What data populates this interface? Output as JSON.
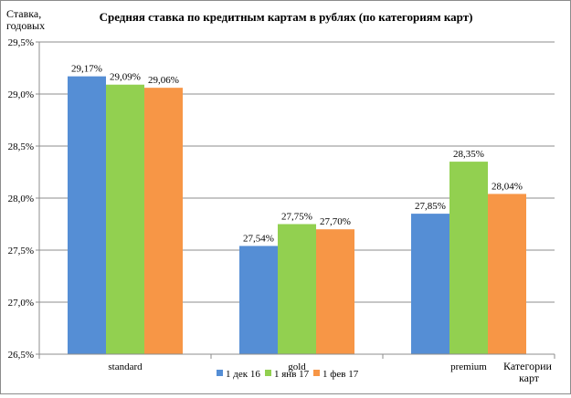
{
  "chart_data": {
    "type": "bar",
    "title": "Средняя ставка по кредитным картам в рублях  (по категориям  карт)",
    "ylabel": [
      "Ставка,",
      "годовых"
    ],
    "xlabel": [
      "Категории",
      "карт"
    ],
    "categories": [
      "standard",
      "gold",
      "premium"
    ],
    "ylim": [
      26.5,
      29.5
    ],
    "yticks": [
      26.5,
      27.0,
      27.5,
      28.0,
      28.5,
      29.0,
      29.5
    ],
    "ytick_labels": [
      "26,5%",
      "27,0%",
      "27,5%",
      "28,0%",
      "28,5%",
      "29,0%",
      "29,5%"
    ],
    "grid": true,
    "legend_position": "bottom",
    "series": [
      {
        "name": "1 дек 16",
        "color": "#558ed5",
        "values": [
          29.17,
          27.54,
          27.85
        ],
        "labels": [
          "29,17%",
          "27,54%",
          "27,85%"
        ]
      },
      {
        "name": "1 янв 17",
        "color": "#92d050",
        "values": [
          29.09,
          27.75,
          28.35
        ],
        "labels": [
          "29,09%",
          "27,75%",
          "28,35%"
        ]
      },
      {
        "name": "1 фев 17",
        "color": "#f79646",
        "values": [
          29.06,
          27.7,
          28.04
        ],
        "labels": [
          "29,06%",
          "27,70%",
          "28,04%"
        ]
      }
    ]
  }
}
